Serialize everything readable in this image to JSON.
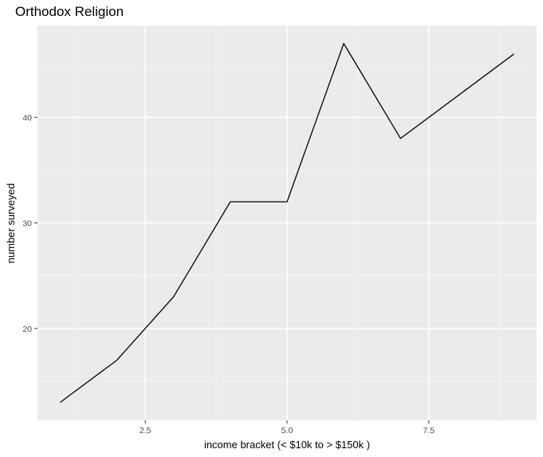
{
  "chart_data": {
    "type": "line",
    "title": "Orthodox Religion",
    "xlabel": "income bracket (< $10k to > $150k )",
    "ylabel": "number surveyed",
    "x": [
      1,
      2,
      3,
      4,
      5,
      6,
      7,
      8,
      9
    ],
    "series": [
      {
        "name": "Orthodox",
        "values": [
          13,
          17,
          23,
          32,
          32,
          47,
          38,
          42,
          46
        ]
      }
    ],
    "xlim": [
      0.6,
      9.4
    ],
    "ylim": [
      11.3,
      48.7
    ],
    "x_ticks": [
      2.5,
      5.0,
      7.5
    ],
    "x_tick_labels": [
      "2.5",
      "5.0",
      "7.5"
    ],
    "x_minor_ticks": [
      1.25,
      3.75,
      6.25,
      8.75
    ],
    "y_ticks": [
      20,
      30,
      40
    ],
    "y_tick_labels": [
      "20",
      "30",
      "40"
    ],
    "y_minor_ticks": [
      15,
      25,
      35,
      45
    ],
    "grid": true,
    "colors": {
      "panel_background": "#ebebeb",
      "grid_major": "#ffffff",
      "grid_minor": "#f5f5f5",
      "line": "#000000",
      "tick": "#333333"
    }
  }
}
